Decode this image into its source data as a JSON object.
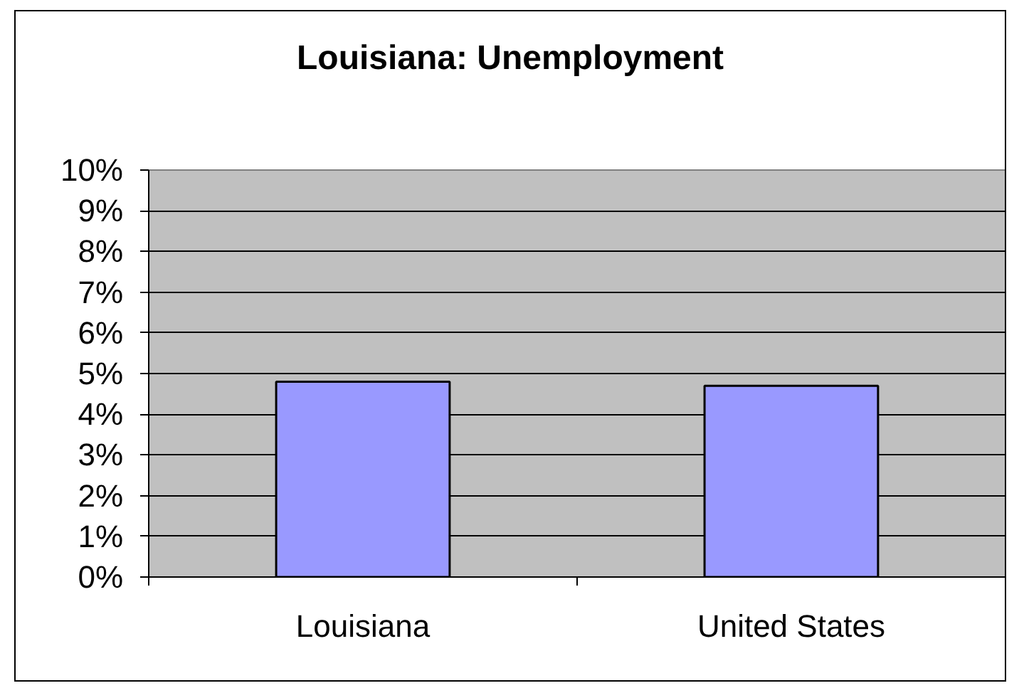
{
  "chart_data": {
    "type": "bar",
    "title": "Louisiana: Unemployment",
    "categories": [
      "Louisiana",
      "United States"
    ],
    "values": [
      4.8,
      4.7
    ],
    "color": "#9999ff",
    "ylim": [
      0,
      10
    ],
    "yticks": [
      {
        "value": 0,
        "label": "0%"
      },
      {
        "value": 1,
        "label": "1%"
      },
      {
        "value": 2,
        "label": "2%"
      },
      {
        "value": 3,
        "label": "3%"
      },
      {
        "value": 4,
        "label": "4%"
      },
      {
        "value": 5,
        "label": "5%"
      },
      {
        "value": 6,
        "label": "6%"
      },
      {
        "value": 7,
        "label": "7%"
      },
      {
        "value": 8,
        "label": "8%"
      },
      {
        "value": 9,
        "label": "9%"
      },
      {
        "value": 10,
        "label": "10%"
      }
    ],
    "grid": "y"
  }
}
